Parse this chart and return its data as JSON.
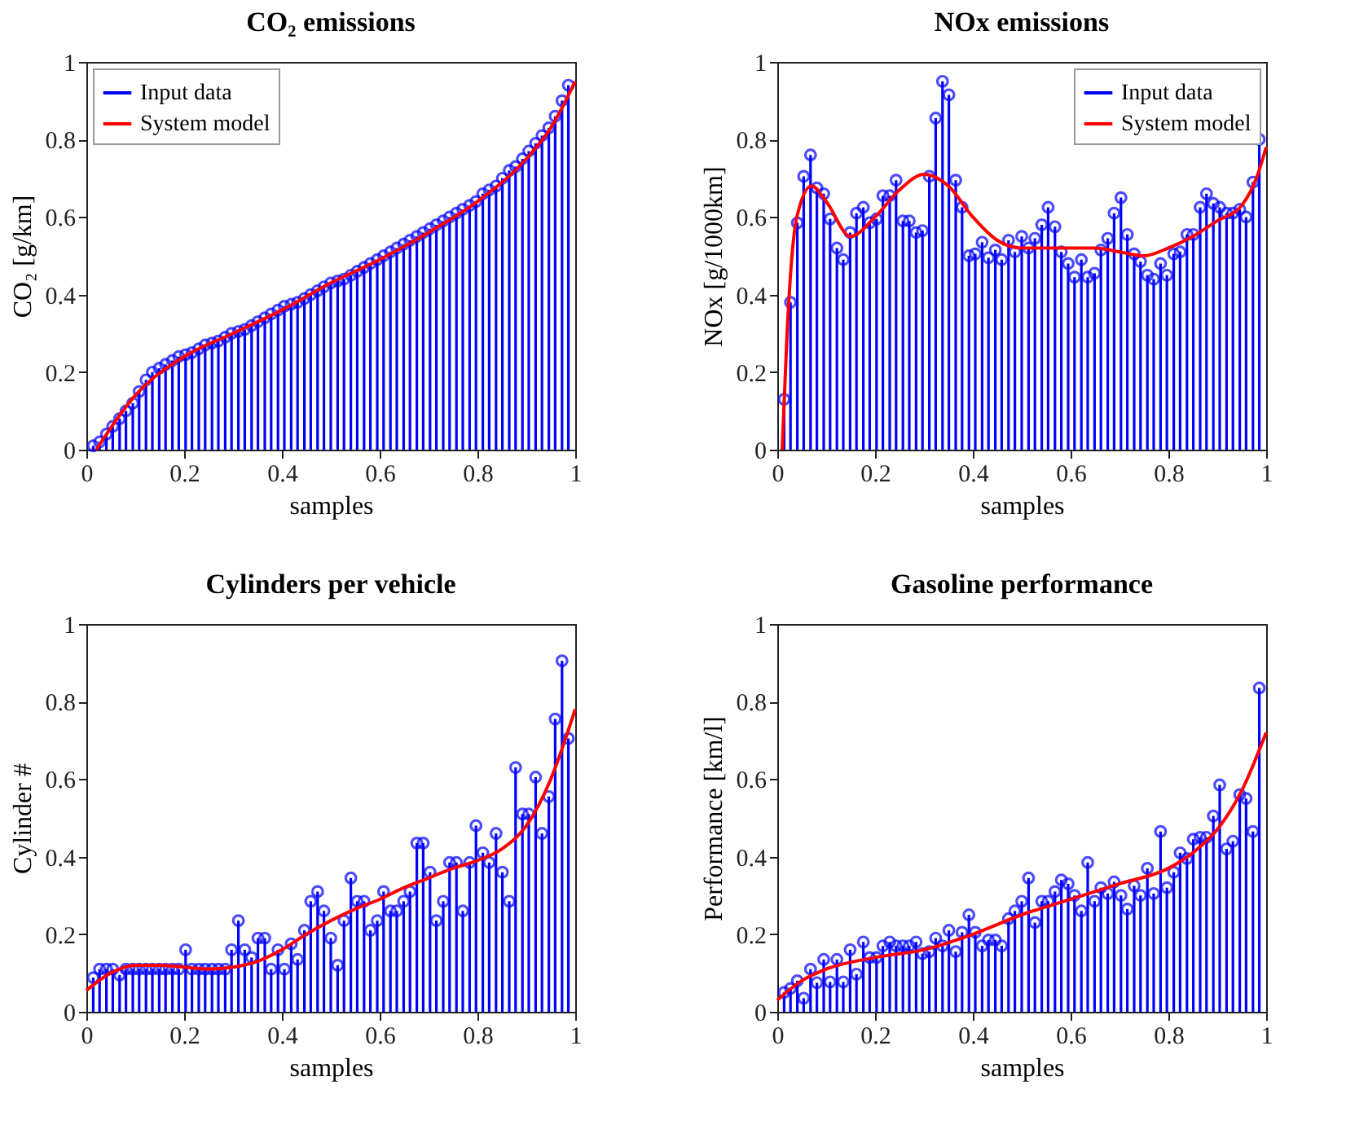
{
  "chart_data": [
    {
      "type": "lollipop",
      "title": "CO₂ emissions",
      "xlabel": "samples",
      "ylabel": "CO₂ [g/km]",
      "xlim": [
        0,
        1
      ],
      "ylim": [
        0,
        1
      ],
      "xticks": [
        0,
        0.2,
        0.4,
        0.6,
        0.8,
        1
      ],
      "yticks": [
        0,
        0.2,
        0.4,
        0.6,
        0.8,
        1
      ],
      "legend": "top left",
      "grid": false,
      "x": [
        0.014,
        0.027,
        0.041,
        0.054,
        0.068,
        0.081,
        0.095,
        0.108,
        0.122,
        0.135,
        0.149,
        0.162,
        0.176,
        0.189,
        0.203,
        0.216,
        0.23,
        0.243,
        0.257,
        0.27,
        0.284,
        0.297,
        0.311,
        0.324,
        0.338,
        0.351,
        0.365,
        0.378,
        0.392,
        0.405,
        0.419,
        0.432,
        0.446,
        0.459,
        0.473,
        0.486,
        0.5,
        0.514,
        0.527,
        0.541,
        0.554,
        0.568,
        0.581,
        0.595,
        0.608,
        0.622,
        0.635,
        0.649,
        0.662,
        0.676,
        0.689,
        0.703,
        0.716,
        0.73,
        0.743,
        0.757,
        0.77,
        0.784,
        0.797,
        0.811,
        0.824,
        0.838,
        0.851,
        0.865,
        0.878,
        0.892,
        0.905,
        0.919,
        0.932,
        0.946,
        0.959,
        0.973,
        0.986
      ],
      "series": [
        {
          "name": "Input data",
          "type": "lollipop",
          "marker": "circle",
          "color": "#0000ff",
          "values": [
            0.01,
            0.02,
            0.04,
            0.06,
            0.08,
            0.1,
            0.12,
            0.15,
            0.18,
            0.2,
            0.21,
            0.22,
            0.23,
            0.24,
            0.245,
            0.25,
            0.26,
            0.27,
            0.275,
            0.28,
            0.29,
            0.3,
            0.305,
            0.31,
            0.32,
            0.33,
            0.34,
            0.35,
            0.36,
            0.37,
            0.375,
            0.38,
            0.39,
            0.4,
            0.41,
            0.42,
            0.43,
            0.435,
            0.44,
            0.45,
            0.46,
            0.47,
            0.48,
            0.49,
            0.5,
            0.51,
            0.52,
            0.53,
            0.54,
            0.55,
            0.56,
            0.57,
            0.58,
            0.59,
            0.6,
            0.61,
            0.62,
            0.63,
            0.64,
            0.66,
            0.67,
            0.68,
            0.7,
            0.72,
            0.73,
            0.75,
            0.77,
            0.79,
            0.81,
            0.83,
            0.86,
            0.9,
            0.94
          ]
        },
        {
          "name": "System model",
          "type": "line",
          "color": "#ff0000",
          "x": [
            0.02,
            0.1,
            0.2,
            0.3,
            0.4,
            0.5,
            0.6,
            0.7,
            0.8,
            0.9,
            0.95,
            1
          ],
          "values": [
            0,
            0.14,
            0.24,
            0.3,
            0.36,
            0.43,
            0.49,
            0.56,
            0.64,
            0.75,
            0.83,
            0.95
          ]
        }
      ]
    },
    {
      "type": "lollipop",
      "title": "NOx emissions",
      "xlabel": "samples",
      "ylabel": "NOx [g/1000km]",
      "xlim": [
        0,
        1
      ],
      "ylim": [
        0,
        1
      ],
      "xticks": [
        0,
        0.2,
        0.4,
        0.6,
        0.8,
        1
      ],
      "yticks": [
        0,
        0.2,
        0.4,
        0.6,
        0.8,
        1
      ],
      "legend": "top right",
      "grid": false,
      "x": [
        0.014,
        0.027,
        0.041,
        0.054,
        0.068,
        0.081,
        0.095,
        0.108,
        0.122,
        0.135,
        0.149,
        0.162,
        0.176,
        0.189,
        0.203,
        0.216,
        0.23,
        0.243,
        0.257,
        0.27,
        0.284,
        0.297,
        0.311,
        0.324,
        0.338,
        0.351,
        0.365,
        0.378,
        0.392,
        0.405,
        0.419,
        0.432,
        0.446,
        0.459,
        0.473,
        0.486,
        0.5,
        0.514,
        0.527,
        0.541,
        0.554,
        0.568,
        0.581,
        0.595,
        0.608,
        0.622,
        0.635,
        0.649,
        0.662,
        0.676,
        0.689,
        0.703,
        0.716,
        0.73,
        0.743,
        0.757,
        0.77,
        0.784,
        0.797,
        0.811,
        0.824,
        0.838,
        0.851,
        0.865,
        0.878,
        0.892,
        0.905,
        0.919,
        0.932,
        0.946,
        0.959,
        0.973,
        0.986
      ],
      "series": [
        {
          "name": "Input data",
          "type": "lollipop",
          "marker": "circle",
          "color": "#0000ff",
          "values": [
            0.13,
            0.38,
            0.585,
            0.705,
            0.76,
            0.675,
            0.66,
            0.595,
            0.52,
            0.49,
            0.56,
            0.61,
            0.625,
            0.585,
            0.595,
            0.655,
            0.655,
            0.695,
            0.59,
            0.59,
            0.56,
            0.565,
            0.705,
            0.855,
            0.95,
            0.915,
            0.695,
            0.625,
            0.5,
            0.505,
            0.535,
            0.495,
            0.515,
            0.49,
            0.54,
            0.51,
            0.55,
            0.52,
            0.545,
            0.58,
            0.625,
            0.575,
            0.51,
            0.48,
            0.445,
            0.49,
            0.445,
            0.455,
            0.515,
            0.545,
            0.61,
            0.65,
            0.555,
            0.505,
            0.485,
            0.45,
            0.44,
            0.48,
            0.45,
            0.505,
            0.51,
            0.555,
            0.555,
            0.625,
            0.66,
            0.635,
            0.625,
            0.61,
            0.61,
            0.62,
            0.6,
            0.69,
            0.8
          ]
        },
        {
          "name": "System model",
          "type": "line",
          "color": "#ff0000",
          "x": [
            0.01,
            0.02,
            0.04,
            0.07,
            0.1,
            0.15,
            0.2,
            0.25,
            0.3,
            0.35,
            0.4,
            0.45,
            0.5,
            0.55,
            0.6,
            0.65,
            0.7,
            0.75,
            0.8,
            0.85,
            0.9,
            0.95,
            0.98,
            1
          ],
          "values": [
            0,
            0.3,
            0.6,
            0.68,
            0.64,
            0.55,
            0.6,
            0.67,
            0.71,
            0.68,
            0.6,
            0.54,
            0.52,
            0.52,
            0.52,
            0.52,
            0.51,
            0.5,
            0.52,
            0.55,
            0.59,
            0.63,
            0.7,
            0.78
          ]
        }
      ]
    },
    {
      "type": "lollipop",
      "title": "Cylinders per vehicle",
      "xlabel": "samples",
      "ylabel": "Cylinder #",
      "xlim": [
        0,
        1
      ],
      "ylim": [
        0,
        1
      ],
      "xticks": [
        0,
        0.2,
        0.4,
        0.6,
        0.8,
        1
      ],
      "yticks": [
        0,
        0.2,
        0.4,
        0.6,
        0.8,
        1
      ],
      "legend": "top left",
      "grid": false,
      "x": [
        0.014,
        0.027,
        0.041,
        0.054,
        0.068,
        0.081,
        0.095,
        0.108,
        0.122,
        0.135,
        0.149,
        0.162,
        0.176,
        0.189,
        0.203,
        0.216,
        0.23,
        0.243,
        0.257,
        0.27,
        0.284,
        0.297,
        0.311,
        0.324,
        0.338,
        0.351,
        0.365,
        0.378,
        0.392,
        0.405,
        0.419,
        0.432,
        0.446,
        0.459,
        0.473,
        0.486,
        0.5,
        0.514,
        0.527,
        0.541,
        0.554,
        0.568,
        0.581,
        0.595,
        0.608,
        0.622,
        0.635,
        0.649,
        0.662,
        0.676,
        0.689,
        0.703,
        0.716,
        0.73,
        0.743,
        0.757,
        0.77,
        0.784,
        0.797,
        0.811,
        0.824,
        0.838,
        0.851,
        0.865,
        0.878,
        0.892,
        0.905,
        0.919,
        0.932,
        0.946,
        0.959,
        0.973,
        0.986
      ],
      "series": [
        {
          "name": "Input data",
          "type": "lollipop",
          "marker": "circle",
          "color": "#0000ff",
          "values": [
            0.088,
            0.11,
            0.11,
            0.11,
            0.095,
            0.11,
            0.11,
            0.11,
            0.11,
            0.11,
            0.11,
            0.11,
            0.11,
            0.11,
            0.16,
            0.11,
            0.11,
            0.11,
            0.11,
            0.11,
            0.11,
            0.16,
            0.235,
            0.16,
            0.14,
            0.19,
            0.19,
            0.11,
            0.16,
            0.11,
            0.175,
            0.135,
            0.21,
            0.285,
            0.31,
            0.26,
            0.19,
            0.12,
            0.235,
            0.345,
            0.285,
            0.285,
            0.21,
            0.235,
            0.31,
            0.26,
            0.26,
            0.285,
            0.31,
            0.435,
            0.435,
            0.36,
            0.235,
            0.285,
            0.385,
            0.385,
            0.26,
            0.385,
            0.48,
            0.41,
            0.385,
            0.46,
            0.36,
            0.285,
            0.63,
            0.51,
            0.51,
            0.605,
            0.46,
            0.555,
            0.755,
            0.905,
            0.705
          ]
        },
        {
          "name": "System model",
          "type": "line",
          "color": "#ff0000",
          "x": [
            0,
            0.05,
            0.1,
            0.15,
            0.2,
            0.25,
            0.3,
            0.35,
            0.4,
            0.45,
            0.5,
            0.55,
            0.6,
            0.65,
            0.7,
            0.75,
            0.8,
            0.85,
            0.9,
            0.95,
            1
          ],
          "values": [
            0.055,
            0.1,
            0.12,
            0.12,
            0.115,
            0.11,
            0.115,
            0.13,
            0.16,
            0.2,
            0.235,
            0.265,
            0.29,
            0.32,
            0.345,
            0.37,
            0.39,
            0.42,
            0.48,
            0.6,
            0.78
          ]
        }
      ]
    },
    {
      "type": "lollipop",
      "title": "Gasoline performance",
      "xlabel": "samples",
      "ylabel": "Performance [km/l]",
      "xlim": [
        0,
        1
      ],
      "ylim": [
        0,
        1
      ],
      "xticks": [
        0,
        0.2,
        0.4,
        0.6,
        0.8,
        1
      ],
      "yticks": [
        0,
        0.2,
        0.4,
        0.6,
        0.8,
        1
      ],
      "legend": "top left",
      "grid": false,
      "x": [
        0.014,
        0.027,
        0.041,
        0.054,
        0.068,
        0.081,
        0.095,
        0.108,
        0.122,
        0.135,
        0.149,
        0.162,
        0.176,
        0.189,
        0.203,
        0.216,
        0.23,
        0.243,
        0.257,
        0.27,
        0.284,
        0.297,
        0.311,
        0.324,
        0.338,
        0.351,
        0.365,
        0.378,
        0.392,
        0.405,
        0.419,
        0.432,
        0.446,
        0.459,
        0.473,
        0.486,
        0.5,
        0.514,
        0.527,
        0.541,
        0.554,
        0.568,
        0.581,
        0.595,
        0.608,
        0.622,
        0.635,
        0.649,
        0.662,
        0.676,
        0.689,
        0.703,
        0.716,
        0.73,
        0.743,
        0.757,
        0.77,
        0.784,
        0.797,
        0.811,
        0.824,
        0.838,
        0.851,
        0.865,
        0.878,
        0.892,
        0.905,
        0.919,
        0.932,
        0.946,
        0.959,
        0.973,
        0.986
      ],
      "series": [
        {
          "name": "Input data",
          "type": "lollipop",
          "marker": "circle",
          "color": "#0000ff",
          "values": [
            0.05,
            0.06,
            0.08,
            0.035,
            0.11,
            0.075,
            0.135,
            0.077,
            0.135,
            0.077,
            0.16,
            0.097,
            0.18,
            0.14,
            0.14,
            0.17,
            0.18,
            0.17,
            0.17,
            0.17,
            0.18,
            0.15,
            0.155,
            0.19,
            0.17,
            0.21,
            0.155,
            0.205,
            0.25,
            0.205,
            0.17,
            0.185,
            0.185,
            0.17,
            0.24,
            0.26,
            0.285,
            0.345,
            0.23,
            0.285,
            0.285,
            0.31,
            0.34,
            0.33,
            0.3,
            0.26,
            0.385,
            0.285,
            0.32,
            0.305,
            0.335,
            0.3,
            0.265,
            0.325,
            0.3,
            0.37,
            0.305,
            0.465,
            0.32,
            0.36,
            0.41,
            0.395,
            0.445,
            0.45,
            0.45,
            0.505,
            0.585,
            0.42,
            0.44,
            0.56,
            0.55,
            0.465,
            0.835
          ]
        },
        {
          "name": "System model",
          "type": "line",
          "color": "#ff0000",
          "x": [
            0,
            0.05,
            0.1,
            0.2,
            0.3,
            0.4,
            0.5,
            0.6,
            0.7,
            0.8,
            0.85,
            0.9,
            0.95,
            1
          ],
          "values": [
            0.03,
            0.08,
            0.11,
            0.14,
            0.16,
            0.2,
            0.25,
            0.29,
            0.33,
            0.37,
            0.41,
            0.47,
            0.57,
            0.72
          ]
        }
      ]
    }
  ]
}
